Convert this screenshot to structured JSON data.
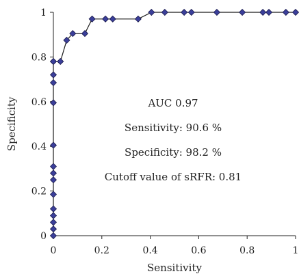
{
  "chart_data": {
    "type": "line",
    "xlabel": "Sensitivity",
    "ylabel": "Specificity",
    "xlim": [
      0,
      1
    ],
    "ylim": [
      0,
      1
    ],
    "x_ticks": [
      "0",
      "0.2",
      "0.4",
      "0.6",
      "0.8",
      "1"
    ],
    "y_ticks": [
      "0",
      "0.2",
      "0.4",
      "0.6",
      "0.8",
      "1"
    ],
    "grid": false,
    "marker": "diamond",
    "colors": {
      "line": "#1a1a1a",
      "marker_fill": "#3b3f9a",
      "marker_stroke": "#1a1a4a"
    },
    "series": [
      {
        "x": [
          0,
          0,
          0,
          0,
          0,
          0,
          0,
          0,
          0,
          0,
          0,
          0,
          0,
          0,
          0,
          0.029,
          0.055,
          0.08,
          0.13,
          0.16,
          0.215,
          0.245,
          0.35,
          0.405,
          0.46,
          0.54,
          0.57,
          0.675,
          0.78,
          0.865,
          0.89,
          0.96,
          1.0
        ],
        "y": [
          0,
          0.03,
          0.06,
          0.09,
          0.12,
          0.185,
          0.25,
          0.28,
          0.31,
          0.405,
          0.595,
          0.685,
          0.72,
          0.78,
          0.78,
          0.78,
          0.875,
          0.905,
          0.905,
          0.97,
          0.97,
          0.97,
          0.97,
          1,
          1,
          1,
          1,
          1,
          1,
          1,
          1,
          1,
          1
        ]
      }
    ],
    "annotations": [
      "AUC 0.97",
      "Sensitivity: 90.6 %",
      "Specificity: 98.2 %",
      "Cutoff value of sRFR: 0.81"
    ]
  }
}
